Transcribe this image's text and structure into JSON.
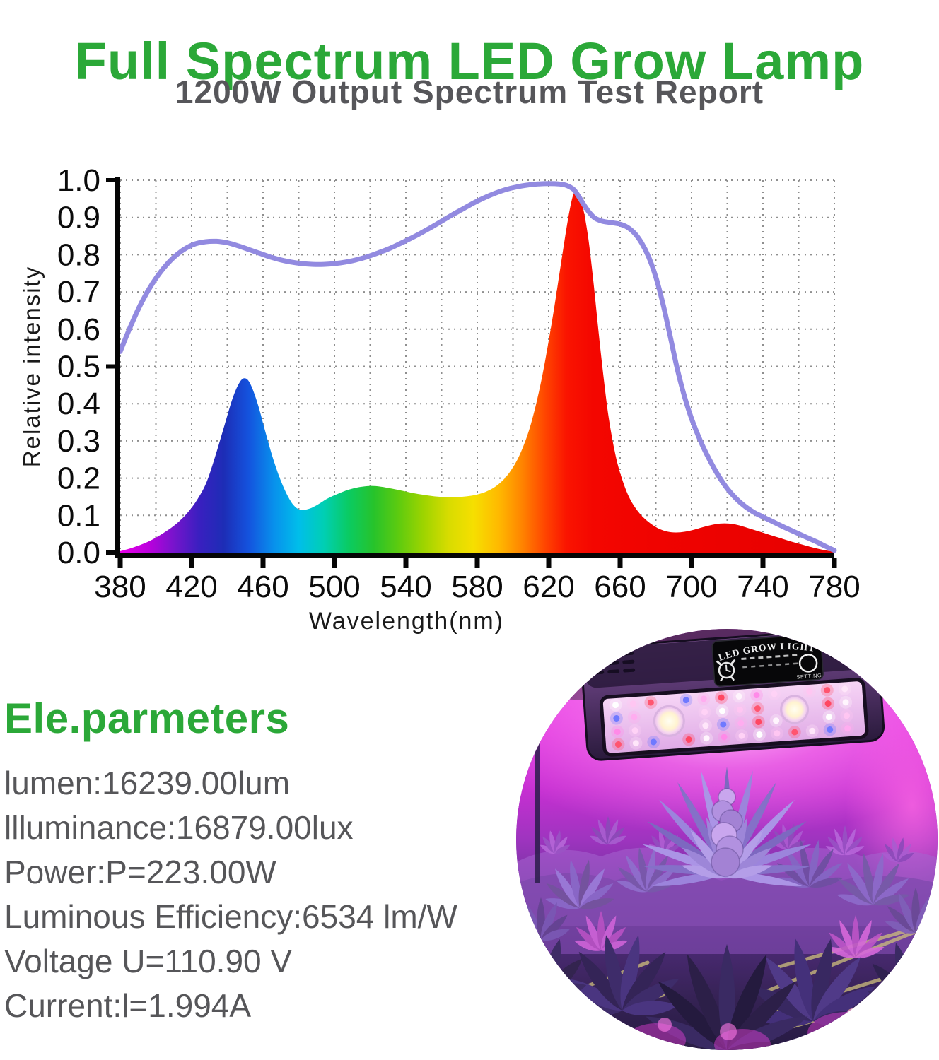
{
  "title": "Full Spectrum LED Grow Lamp",
  "subtitle": "1200W Output Spectrum Test Report",
  "colors": {
    "title_green": "#2BA838",
    "subtitle_gray": "#56565A",
    "parameter_text_gray": "#565659",
    "axis_black": "#050505",
    "gridline_gray": "#8F8F8F",
    "led_line_purple": "#928AE0"
  },
  "chart_data": {
    "type": "area",
    "title": "1200W Output Spectrum Test Report",
    "xlabel": "Wavelength(nm)",
    "ylabel": "Relative intensity",
    "xlim": [
      380,
      780
    ],
    "ylim": [
      0.0,
      1.0
    ],
    "x_ticks": [
      380,
      420,
      460,
      500,
      540,
      580,
      620,
      660,
      700,
      740,
      780
    ],
    "y_ticks": [
      "0.0",
      "0.1",
      "0.2",
      "0.3",
      "0.4",
      "0.5",
      "0.6",
      "0.7",
      "0.8",
      "0.9",
      "1.0"
    ],
    "grid": {
      "style": "dotted",
      "x_step_nm": 20,
      "y_step": 0.1,
      "color": "#8F8F8F"
    },
    "series": [
      {
        "name": "spectrum-output-area",
        "type": "area",
        "fill": "wavelength-gradient",
        "points": [
          [
            380,
            0.004
          ],
          [
            386,
            0.012
          ],
          [
            392,
            0.022
          ],
          [
            398,
            0.035
          ],
          [
            404,
            0.052
          ],
          [
            410,
            0.072
          ],
          [
            416,
            0.098
          ],
          [
            422,
            0.134
          ],
          [
            428,
            0.185
          ],
          [
            433,
            0.255
          ],
          [
            438,
            0.335
          ],
          [
            443,
            0.415
          ],
          [
            447,
            0.458
          ],
          [
            450,
            0.468
          ],
          [
            453,
            0.452
          ],
          [
            457,
            0.4
          ],
          [
            461,
            0.33
          ],
          [
            465,
            0.262
          ],
          [
            469,
            0.205
          ],
          [
            473,
            0.16
          ],
          [
            477,
            0.128
          ],
          [
            481,
            0.115
          ],
          [
            486,
            0.118
          ],
          [
            491,
            0.13
          ],
          [
            496,
            0.145
          ],
          [
            502,
            0.158
          ],
          [
            508,
            0.169
          ],
          [
            514,
            0.176
          ],
          [
            520,
            0.179
          ],
          [
            526,
            0.177
          ],
          [
            532,
            0.172
          ],
          [
            538,
            0.166
          ],
          [
            544,
            0.16
          ],
          [
            550,
            0.155
          ],
          [
            556,
            0.151
          ],
          [
            562,
            0.149
          ],
          [
            568,
            0.149
          ],
          [
            574,
            0.151
          ],
          [
            580,
            0.156
          ],
          [
            586,
            0.166
          ],
          [
            592,
            0.184
          ],
          [
            598,
            0.215
          ],
          [
            604,
            0.265
          ],
          [
            610,
            0.345
          ],
          [
            616,
            0.465
          ],
          [
            622,
            0.625
          ],
          [
            627,
            0.78
          ],
          [
            631,
            0.9
          ],
          [
            634,
            0.965
          ],
          [
            636,
            0.968
          ],
          [
            639,
            0.93
          ],
          [
            642,
            0.85
          ],
          [
            645,
            0.73
          ],
          [
            648,
            0.59
          ],
          [
            651,
            0.46
          ],
          [
            654,
            0.35
          ],
          [
            658,
            0.25
          ],
          [
            662,
            0.185
          ],
          [
            666,
            0.14
          ],
          [
            671,
            0.105
          ],
          [
            676,
            0.082
          ],
          [
            681,
            0.066
          ],
          [
            686,
            0.057
          ],
          [
            691,
            0.054
          ],
          [
            696,
            0.056
          ],
          [
            701,
            0.061
          ],
          [
            706,
            0.068
          ],
          [
            711,
            0.074
          ],
          [
            716,
            0.078
          ],
          [
            721,
            0.078
          ],
          [
            726,
            0.074
          ],
          [
            731,
            0.067
          ],
          [
            737,
            0.058
          ],
          [
            743,
            0.049
          ],
          [
            749,
            0.04
          ],
          [
            755,
            0.031
          ],
          [
            761,
            0.023
          ],
          [
            767,
            0.015
          ],
          [
            773,
            0.008
          ],
          [
            780,
            0.002
          ]
        ]
      },
      {
        "name": "smooth-envelope-line",
        "type": "line",
        "color": "#928AE0",
        "width": 7,
        "points": [
          [
            380,
            0.54
          ],
          [
            386,
            0.61
          ],
          [
            392,
            0.672
          ],
          [
            398,
            0.722
          ],
          [
            404,
            0.762
          ],
          [
            410,
            0.793
          ],
          [
            416,
            0.815
          ],
          [
            422,
            0.829
          ],
          [
            428,
            0.835
          ],
          [
            434,
            0.836
          ],
          [
            440,
            0.832
          ],
          [
            446,
            0.824
          ],
          [
            452,
            0.814
          ],
          [
            458,
            0.804
          ],
          [
            464,
            0.794
          ],
          [
            470,
            0.786
          ],
          [
            476,
            0.78
          ],
          [
            482,
            0.776
          ],
          [
            488,
            0.774
          ],
          [
            494,
            0.774
          ],
          [
            500,
            0.776
          ],
          [
            506,
            0.78
          ],
          [
            512,
            0.786
          ],
          [
            518,
            0.794
          ],
          [
            524,
            0.804
          ],
          [
            530,
            0.815
          ],
          [
            536,
            0.828
          ],
          [
            542,
            0.842
          ],
          [
            548,
            0.857
          ],
          [
            554,
            0.873
          ],
          [
            560,
            0.89
          ],
          [
            566,
            0.907
          ],
          [
            572,
            0.923
          ],
          [
            578,
            0.939
          ],
          [
            584,
            0.953
          ],
          [
            590,
            0.965
          ],
          [
            596,
            0.975
          ],
          [
            602,
            0.982
          ],
          [
            608,
            0.987
          ],
          [
            614,
            0.99
          ],
          [
            620,
            0.991
          ],
          [
            626,
            0.99
          ],
          [
            630,
            0.986
          ],
          [
            634,
            0.975
          ],
          [
            637,
            0.955
          ],
          [
            640,
            0.932
          ],
          [
            643,
            0.912
          ],
          [
            646,
            0.898
          ],
          [
            650,
            0.89
          ],
          [
            655,
            0.886
          ],
          [
            660,
            0.882
          ],
          [
            664,
            0.874
          ],
          [
            668,
            0.858
          ],
          [
            672,
            0.832
          ],
          [
            676,
            0.794
          ],
          [
            680,
            0.74
          ],
          [
            684,
            0.668
          ],
          [
            688,
            0.582
          ],
          [
            692,
            0.494
          ],
          [
            696,
            0.42
          ],
          [
            700,
            0.36
          ],
          [
            705,
            0.3
          ],
          [
            710,
            0.25
          ],
          [
            715,
            0.207
          ],
          [
            720,
            0.172
          ],
          [
            725,
            0.145
          ],
          [
            730,
            0.124
          ],
          [
            735,
            0.108
          ],
          [
            740,
            0.096
          ],
          [
            746,
            0.082
          ],
          [
            752,
            0.068
          ],
          [
            758,
            0.055
          ],
          [
            764,
            0.042
          ],
          [
            770,
            0.029
          ],
          [
            775,
            0.017
          ],
          [
            780,
            0.006
          ]
        ]
      }
    ],
    "wavelength_gradient_stops": [
      {
        "wavelength": 380,
        "color": "#E800E8"
      },
      {
        "wavelength": 396,
        "color": "#BB00DD"
      },
      {
        "wavelength": 410,
        "color": "#7714CC"
      },
      {
        "wavelength": 424,
        "color": "#3A1FC0"
      },
      {
        "wavelength": 438,
        "color": "#1D2DB6"
      },
      {
        "wavelength": 452,
        "color": "#1453DE"
      },
      {
        "wavelength": 466,
        "color": "#0890EC"
      },
      {
        "wavelength": 480,
        "color": "#00BEEA"
      },
      {
        "wavelength": 494,
        "color": "#00CFB4"
      },
      {
        "wavelength": 508,
        "color": "#0ACB62"
      },
      {
        "wavelength": 522,
        "color": "#27C32B"
      },
      {
        "wavelength": 536,
        "color": "#5ECB0F"
      },
      {
        "wavelength": 550,
        "color": "#9ED400"
      },
      {
        "wavelength": 564,
        "color": "#D8DC00"
      },
      {
        "wavelength": 578,
        "color": "#F6DF00"
      },
      {
        "wavelength": 592,
        "color": "#FFB900"
      },
      {
        "wavelength": 605,
        "color": "#FF8400"
      },
      {
        "wavelength": 618,
        "color": "#FF4500"
      },
      {
        "wavelength": 630,
        "color": "#FA1400"
      },
      {
        "wavelength": 645,
        "color": "#F40600"
      },
      {
        "wavelength": 680,
        "color": "#F00300"
      },
      {
        "wavelength": 780,
        "color": "#E60000"
      }
    ]
  },
  "parameters": {
    "heading": "Ele.parmeters",
    "items": [
      "lumen:16239.00lum",
      "llluminance:16879.00lux",
      "Power:P=223.00W",
      "Luminous Efficiency:6534 lm/W",
      "Voltage U=110.90 V",
      "Current:l=1.994A"
    ]
  },
  "photo": {
    "lamp_label": "LED GROW LIGHT",
    "knob_label": "SETTING"
  }
}
